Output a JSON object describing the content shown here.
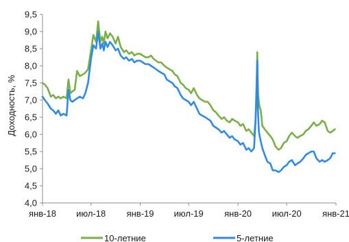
{
  "chart_data": {
    "type": "line",
    "ylabel": "Доходность, %",
    "ylim": [
      4.0,
      9.5
    ],
    "yticks": [
      "4,0",
      "4,5",
      "5,0",
      "5,5",
      "6,0",
      "6,5",
      "7,0",
      "7,5",
      "8,0",
      "8,5",
      "9,0",
      "9,5"
    ],
    "xlim": [
      "2018-01-01",
      "2021-01-01"
    ],
    "xticks": [
      {
        "date": "2018-01-01",
        "label": "янв-18"
      },
      {
        "date": "2018-07-01",
        "label": "июл-18"
      },
      {
        "date": "2019-01-01",
        "label": "янв-19"
      },
      {
        "date": "2019-07-01",
        "label": "июл-19"
      },
      {
        "date": "2020-01-01",
        "label": "янв-20"
      },
      {
        "date": "2020-07-01",
        "label": "июл-20"
      },
      {
        "date": "2021-01-01",
        "label": "янв-21"
      }
    ],
    "grid": false,
    "legend_position": "bottom",
    "series": [
      {
        "name": "10-летние",
        "color": "#77b043",
        "x": [
          "2018-01-01",
          "2018-01-10",
          "2018-01-20",
          "2018-02-01",
          "2018-02-10",
          "2018-02-20",
          "2018-03-01",
          "2018-03-10",
          "2018-03-20",
          "2018-04-01",
          "2018-04-08",
          "2018-04-15",
          "2018-04-22",
          "2018-05-01",
          "2018-05-10",
          "2018-05-20",
          "2018-06-01",
          "2018-06-10",
          "2018-06-20",
          "2018-07-01",
          "2018-07-10",
          "2018-07-20",
          "2018-07-28",
          "2018-08-05",
          "2018-08-12",
          "2018-08-18",
          "2018-08-24",
          "2018-09-01",
          "2018-09-10",
          "2018-09-20",
          "2018-10-01",
          "2018-10-10",
          "2018-10-20",
          "2018-11-01",
          "2018-11-10",
          "2018-11-20",
          "2018-12-01",
          "2018-12-10",
          "2018-12-20",
          "2019-01-01",
          "2019-01-10",
          "2019-01-20",
          "2019-02-01",
          "2019-02-10",
          "2019-02-20",
          "2019-03-01",
          "2019-03-10",
          "2019-03-20",
          "2019-04-01",
          "2019-04-10",
          "2019-04-20",
          "2019-05-01",
          "2019-05-10",
          "2019-05-20",
          "2019-06-01",
          "2019-06-10",
          "2019-06-20",
          "2019-07-01",
          "2019-07-10",
          "2019-07-20",
          "2019-08-01",
          "2019-08-10",
          "2019-08-20",
          "2019-09-01",
          "2019-09-10",
          "2019-09-20",
          "2019-10-01",
          "2019-10-10",
          "2019-10-20",
          "2019-11-01",
          "2019-11-10",
          "2019-11-20",
          "2019-12-01",
          "2019-12-10",
          "2019-12-20",
          "2020-01-01",
          "2020-01-10",
          "2020-01-20",
          "2020-02-01",
          "2020-02-10",
          "2020-02-20",
          "2020-03-01",
          "2020-03-06",
          "2020-03-10",
          "2020-03-13",
          "2020-03-16",
          "2020-03-19",
          "2020-03-22",
          "2020-03-26",
          "2020-04-01",
          "2020-04-10",
          "2020-04-20",
          "2020-05-01",
          "2020-05-10",
          "2020-05-20",
          "2020-06-01",
          "2020-06-10",
          "2020-06-20",
          "2020-07-01",
          "2020-07-10",
          "2020-07-20",
          "2020-08-01",
          "2020-08-10",
          "2020-08-20",
          "2020-09-01",
          "2020-09-10",
          "2020-09-20",
          "2020-10-01",
          "2020-10-10",
          "2020-10-20",
          "2020-11-01",
          "2020-11-10",
          "2020-11-20",
          "2020-12-01",
          "2020-12-10",
          "2020-12-20",
          "2020-12-28"
        ],
        "y": [
          7.5,
          7.45,
          7.35,
          7.1,
          7.15,
          7.05,
          7.1,
          7.05,
          7.1,
          7.05,
          7.6,
          7.2,
          7.25,
          7.3,
          7.85,
          7.7,
          7.75,
          7.8,
          7.9,
          8.45,
          8.9,
          8.7,
          9.3,
          8.7,
          8.85,
          8.65,
          9.0,
          8.8,
          8.95,
          8.85,
          8.65,
          8.85,
          8.55,
          8.4,
          8.45,
          8.35,
          8.4,
          8.3,
          8.35,
          8.35,
          8.3,
          8.25,
          8.25,
          8.3,
          8.2,
          8.15,
          8.1,
          8.1,
          8.0,
          7.95,
          7.9,
          7.85,
          7.75,
          7.7,
          7.5,
          7.45,
          7.35,
          7.3,
          7.2,
          7.35,
          7.15,
          7.05,
          7.0,
          6.95,
          6.95,
          6.85,
          6.7,
          6.65,
          6.55,
          6.45,
          6.5,
          6.4,
          6.35,
          6.45,
          6.4,
          6.35,
          6.25,
          6.3,
          6.1,
          6.15,
          6.05,
          5.95,
          6.35,
          6.9,
          8.4,
          7.2,
          6.95,
          6.8,
          6.7,
          6.25,
          6.15,
          6.05,
          5.95,
          5.85,
          5.65,
          5.55,
          5.6,
          5.75,
          5.8,
          5.95,
          6.05,
          5.95,
          5.9,
          5.95,
          6.0,
          6.1,
          6.15,
          6.25,
          6.35,
          6.25,
          6.3,
          6.4,
          6.35,
          6.1,
          6.05,
          6.1,
          6.15
        ]
      },
      {
        "name": "5-летние",
        "color": "#2d8be6",
        "x": [
          "2018-01-01",
          "2018-01-10",
          "2018-01-20",
          "2018-02-01",
          "2018-02-10",
          "2018-02-20",
          "2018-03-01",
          "2018-03-10",
          "2018-03-20",
          "2018-04-01",
          "2018-04-08",
          "2018-04-15",
          "2018-04-22",
          "2018-05-01",
          "2018-05-10",
          "2018-05-20",
          "2018-06-01",
          "2018-06-10",
          "2018-06-20",
          "2018-07-01",
          "2018-07-10",
          "2018-07-20",
          "2018-07-28",
          "2018-08-05",
          "2018-08-12",
          "2018-08-18",
          "2018-08-24",
          "2018-09-01",
          "2018-09-10",
          "2018-09-20",
          "2018-10-01",
          "2018-10-10",
          "2018-10-20",
          "2018-11-01",
          "2018-11-10",
          "2018-11-20",
          "2018-12-01",
          "2018-12-10",
          "2018-12-20",
          "2019-01-01",
          "2019-01-10",
          "2019-01-20",
          "2019-02-01",
          "2019-02-10",
          "2019-02-20",
          "2019-03-01",
          "2019-03-10",
          "2019-03-20",
          "2019-04-01",
          "2019-04-10",
          "2019-04-20",
          "2019-05-01",
          "2019-05-10",
          "2019-05-20",
          "2019-06-01",
          "2019-06-10",
          "2019-06-20",
          "2019-07-01",
          "2019-07-10",
          "2019-07-20",
          "2019-08-01",
          "2019-08-10",
          "2019-08-20",
          "2019-09-01",
          "2019-09-10",
          "2019-09-20",
          "2019-10-01",
          "2019-10-10",
          "2019-10-20",
          "2019-11-01",
          "2019-11-10",
          "2019-11-20",
          "2019-12-01",
          "2019-12-10",
          "2019-12-20",
          "2020-01-01",
          "2020-01-10",
          "2020-01-20",
          "2020-02-01",
          "2020-02-10",
          "2020-02-20",
          "2020-03-01",
          "2020-03-06",
          "2020-03-10",
          "2020-03-13",
          "2020-03-16",
          "2020-03-19",
          "2020-03-22",
          "2020-03-26",
          "2020-04-01",
          "2020-04-10",
          "2020-04-20",
          "2020-05-01",
          "2020-05-10",
          "2020-05-20",
          "2020-06-01",
          "2020-06-10",
          "2020-06-20",
          "2020-07-01",
          "2020-07-10",
          "2020-07-20",
          "2020-08-01",
          "2020-08-10",
          "2020-08-20",
          "2020-09-01",
          "2020-09-10",
          "2020-09-20",
          "2020-10-01",
          "2020-10-10",
          "2020-10-20",
          "2020-11-01",
          "2020-11-10",
          "2020-11-20",
          "2020-12-01",
          "2020-12-10",
          "2020-12-20",
          "2020-12-28"
        ],
        "y": [
          7.1,
          7.0,
          6.9,
          6.75,
          6.7,
          6.6,
          6.7,
          6.55,
          6.6,
          6.55,
          7.3,
          7.0,
          6.95,
          7.0,
          7.05,
          7.1,
          7.05,
          7.2,
          7.5,
          8.2,
          8.6,
          8.5,
          9.0,
          8.5,
          8.65,
          8.45,
          8.7,
          8.55,
          8.7,
          8.6,
          8.45,
          8.5,
          8.3,
          8.2,
          8.25,
          8.15,
          8.2,
          8.1,
          8.15,
          8.15,
          8.1,
          8.05,
          8.05,
          8.0,
          7.95,
          7.9,
          7.85,
          7.8,
          7.75,
          7.6,
          7.55,
          7.5,
          7.4,
          7.35,
          7.15,
          7.05,
          7.0,
          6.95,
          6.85,
          6.95,
          6.75,
          6.6,
          6.55,
          6.5,
          6.45,
          6.4,
          6.25,
          6.2,
          6.15,
          6.05,
          6.1,
          6.0,
          5.9,
          5.95,
          5.85,
          5.8,
          5.7,
          5.75,
          5.55,
          5.6,
          5.5,
          5.6,
          6.3,
          7.3,
          8.15,
          6.6,
          6.1,
          5.95,
          5.8,
          5.6,
          5.4,
          5.2,
          5.15,
          4.95,
          4.95,
          4.9,
          4.95,
          5.05,
          5.1,
          5.2,
          5.25,
          5.1,
          5.15,
          5.2,
          5.3,
          5.4,
          5.45,
          5.5,
          5.5,
          5.3,
          5.2,
          5.25,
          5.2,
          5.25,
          5.3,
          5.45,
          5.45
        ]
      }
    ]
  }
}
